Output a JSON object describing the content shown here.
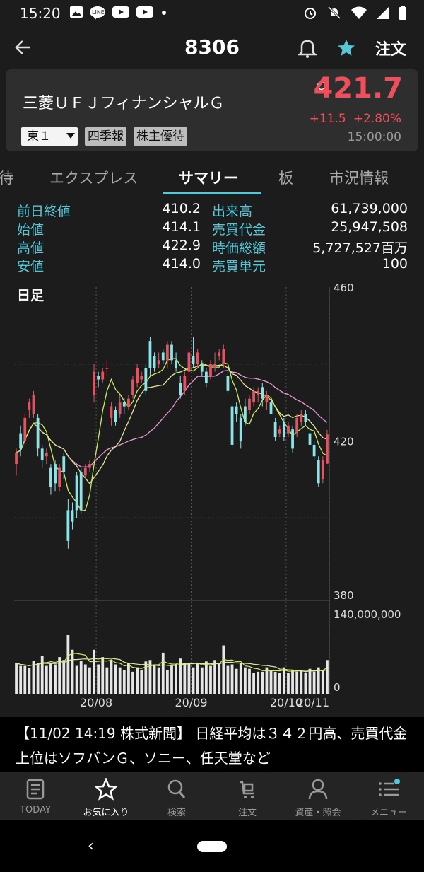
{
  "status_bar": {
    "time": "15:20"
  },
  "header": {
    "title": "8306",
    "order_label": "注文"
  },
  "stock": {
    "name": "三菱ＵＦＪフィナンシャルＧ",
    "price_marker": "C",
    "price": "421.7",
    "change": "+11.5",
    "change_pct": "+2.80%",
    "time": "15:00:00",
    "market": "東１",
    "tags": [
      "四季報",
      "株主優待"
    ],
    "up_color": "#ef4f5c"
  },
  "tabs": [
    "待",
    "エクスプレス",
    "サマリー",
    "板",
    "市況情報"
  ],
  "active_tab": "サマリー",
  "quote": [
    {
      "label": "前日終値",
      "value": "410.2",
      "label2": "出来高",
      "value2": "61,739,000"
    },
    {
      "label": "始値",
      "value": "414.1",
      "label2": "売買代金",
      "value2": "25,947,508"
    },
    {
      "label": "高値",
      "value": "422.9",
      "label2": "時価総額",
      "value2": "5,727,527百万"
    },
    {
      "label": "安値",
      "value": "414.0",
      "label2": "売買単元",
      "value2": "100"
    }
  ],
  "chart_data": [
    {
      "type": "candlestick",
      "title": "日足",
      "ylim": [
        380,
        460
      ],
      "yticks": [
        460,
        420,
        380
      ],
      "xticks": [
        "20/08",
        "20/09",
        "20/10",
        "20/11"
      ],
      "up_color": "#e05561",
      "down_color": "#8fe3e6",
      "ma_colors": [
        "#c8ee66",
        "#e6e6a0",
        "#e89ad6"
      ],
      "candles": [
        {
          "o": 414,
          "c": 417,
          "h": 418,
          "l": 411
        },
        {
          "o": 422,
          "c": 418,
          "h": 424,
          "l": 416
        },
        {
          "o": 420,
          "c": 426,
          "h": 427,
          "l": 419
        },
        {
          "o": 428,
          "c": 430,
          "h": 431,
          "l": 426
        },
        {
          "o": 427,
          "c": 432,
          "h": 433,
          "l": 426
        },
        {
          "o": 426,
          "c": 418,
          "h": 427,
          "l": 416
        },
        {
          "o": 418,
          "c": 415,
          "h": 419,
          "l": 413
        },
        {
          "o": 416,
          "c": 417,
          "h": 418,
          "l": 414
        },
        {
          "o": 413,
          "c": 408,
          "h": 414,
          "l": 406
        },
        {
          "o": 414,
          "c": 409,
          "h": 415,
          "l": 407
        },
        {
          "o": 408,
          "c": 413,
          "h": 414,
          "l": 407
        },
        {
          "o": 416,
          "c": 412,
          "h": 417,
          "l": 410
        },
        {
          "o": 402,
          "c": 394,
          "h": 405,
          "l": 392
        },
        {
          "o": 402,
          "c": 399,
          "h": 404,
          "l": 397
        },
        {
          "o": 411,
          "c": 402,
          "h": 412,
          "l": 400
        },
        {
          "o": 412,
          "c": 402,
          "h": 413,
          "l": 401
        },
        {
          "o": 411,
          "c": 413,
          "h": 414,
          "l": 410
        },
        {
          "o": 413,
          "c": 414,
          "h": 415,
          "l": 412
        },
        {
          "o": 432,
          "c": 438,
          "h": 440,
          "l": 430
        },
        {
          "o": 437,
          "c": 436,
          "h": 438,
          "l": 434
        },
        {
          "o": 436,
          "c": 438,
          "h": 439,
          "l": 435
        },
        {
          "o": 439,
          "c": 439,
          "h": 441,
          "l": 437
        },
        {
          "o": 426,
          "c": 429,
          "h": 430,
          "l": 424
        },
        {
          "o": 428,
          "c": 425,
          "h": 429,
          "l": 424
        },
        {
          "o": 427,
          "c": 430,
          "h": 432,
          "l": 426
        },
        {
          "o": 430,
          "c": 429,
          "h": 431,
          "l": 427
        },
        {
          "o": 429,
          "c": 431,
          "h": 432,
          "l": 428
        },
        {
          "o": 432,
          "c": 436,
          "h": 437,
          "l": 431
        },
        {
          "o": 435,
          "c": 439,
          "h": 440,
          "l": 434
        },
        {
          "o": 436,
          "c": 437,
          "h": 438,
          "l": 435
        },
        {
          "o": 439,
          "c": 433,
          "h": 440,
          "l": 432
        },
        {
          "o": 446,
          "c": 439,
          "h": 447,
          "l": 437
        },
        {
          "o": 442,
          "c": 439,
          "h": 443,
          "l": 438
        },
        {
          "o": 440,
          "c": 441,
          "h": 443,
          "l": 439
        },
        {
          "o": 443,
          "c": 441,
          "h": 444,
          "l": 440
        },
        {
          "o": 441,
          "c": 445,
          "h": 446,
          "l": 439
        },
        {
          "o": 445,
          "c": 441,
          "h": 446,
          "l": 440
        },
        {
          "o": 441,
          "c": 439,
          "h": 443,
          "l": 438
        },
        {
          "o": 435,
          "c": 432,
          "h": 437,
          "l": 431
        },
        {
          "o": 433,
          "c": 437,
          "h": 438,
          "l": 432
        },
        {
          "o": 438,
          "c": 443,
          "h": 444,
          "l": 436
        },
        {
          "o": 442,
          "c": 440,
          "h": 447,
          "l": 439
        },
        {
          "o": 440,
          "c": 443,
          "h": 444,
          "l": 439
        },
        {
          "o": 440,
          "c": 438,
          "h": 441,
          "l": 437
        },
        {
          "o": 438,
          "c": 435,
          "h": 439,
          "l": 434
        },
        {
          "o": 437,
          "c": 440,
          "h": 441,
          "l": 436
        },
        {
          "o": 439,
          "c": 440,
          "h": 443,
          "l": 438
        },
        {
          "o": 442,
          "c": 443,
          "h": 444,
          "l": 441
        },
        {
          "o": 440,
          "c": 444,
          "h": 445,
          "l": 439
        },
        {
          "o": 437,
          "c": 433,
          "h": 438,
          "l": 432
        },
        {
          "o": 429,
          "c": 419,
          "h": 430,
          "l": 418
        },
        {
          "o": 429,
          "c": 427,
          "h": 430,
          "l": 425
        },
        {
          "o": 426,
          "c": 420,
          "h": 427,
          "l": 418
        },
        {
          "o": 429,
          "c": 425,
          "h": 431,
          "l": 424
        },
        {
          "o": 428,
          "c": 431,
          "h": 432,
          "l": 427
        },
        {
          "o": 430,
          "c": 433,
          "h": 434,
          "l": 429
        },
        {
          "o": 432,
          "c": 433,
          "h": 434,
          "l": 430
        },
        {
          "o": 434,
          "c": 431,
          "h": 435,
          "l": 429
        },
        {
          "o": 430,
          "c": 432,
          "h": 433,
          "l": 428
        },
        {
          "o": 430,
          "c": 427,
          "h": 431,
          "l": 426
        },
        {
          "o": 425,
          "c": 421,
          "h": 426,
          "l": 420
        },
        {
          "o": 422,
          "c": 423,
          "h": 424,
          "l": 421
        },
        {
          "o": 425,
          "c": 421,
          "h": 426,
          "l": 420
        },
        {
          "o": 422,
          "c": 424,
          "h": 425,
          "l": 421
        },
        {
          "o": 423,
          "c": 418,
          "h": 424,
          "l": 417
        },
        {
          "o": 422,
          "c": 426,
          "h": 427,
          "l": 421
        },
        {
          "o": 425,
          "c": 427,
          "h": 428,
          "l": 424
        },
        {
          "o": 427,
          "c": 425,
          "h": 428,
          "l": 424
        },
        {
          "o": 422,
          "c": 419,
          "h": 423,
          "l": 418
        },
        {
          "o": 419,
          "c": 416,
          "h": 420,
          "l": 415
        },
        {
          "o": 415,
          "c": 409,
          "h": 416,
          "l": 408
        },
        {
          "o": 410,
          "c": 415,
          "h": 416,
          "l": 409
        },
        {
          "o": 414.1,
          "c": 421.7,
          "h": 422.9,
          "l": 414.0
        }
      ]
    },
    {
      "type": "bar",
      "title": "出来高",
      "ylim": [
        0,
        140000000
      ],
      "yticks": [
        "140,000,000",
        "0"
      ],
      "values": [
        42,
        38,
        38,
        35,
        45,
        42,
        52,
        38,
        42,
        40,
        50,
        46,
        80,
        60,
        38,
        45,
        40,
        36,
        60,
        40,
        50,
        36,
        46,
        40,
        36,
        32,
        42,
        30,
        36,
        32,
        44,
        46,
        40,
        36,
        56,
        32,
        38,
        40,
        48,
        42,
        42,
        36,
        42,
        36,
        44,
        38,
        46,
        40,
        66,
        38,
        40,
        34,
        42,
        36,
        34,
        28,
        30,
        30,
        36,
        32,
        30,
        28,
        36,
        28,
        32,
        30,
        32,
        28,
        34,
        30,
        36,
        32,
        46
      ]
    }
  ],
  "news": "【11/02 14:19 株式新聞】 日経平均は３４２円高、売買代金上位はソフバンＧ、ソニー、任天堂など",
  "nav": [
    "TODAY",
    "お気に入り",
    "検索",
    "注文",
    "資産・照会",
    "メニュー"
  ],
  "accent_color": "#56c7d7"
}
